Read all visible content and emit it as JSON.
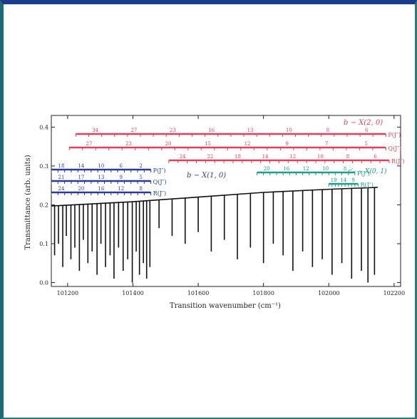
{
  "chart_data": {
    "type": "line",
    "xlabel": "Transition wavenumber (cm⁻¹)",
    "ylabel": "Transmittance (arb. units)",
    "xlim": [
      101150,
      102220
    ],
    "ylim": [
      -0.01,
      0.43
    ],
    "xticks": [
      "101200",
      "101400",
      "101600",
      "101800",
      "102000",
      "102200"
    ],
    "yticks": [
      "0.0",
      "0.1",
      "0.2",
      "0.3",
      "0.4"
    ],
    "grid": false,
    "legend_position": "none",
    "band_labels": {
      "red_band": "b − X(2, 0)",
      "blue_band": "b − X(1, 0)",
      "green_band": "c′₀ − X(0, 1)"
    },
    "branches": [
      {
        "band": "red_band",
        "name": "P(J″)",
        "color": "#e0405a",
        "x_start": 101225,
        "x_end": 102175,
        "numbers": [
          "34",
          "27",
          "23",
          "16",
          "13",
          "10",
          "8",
          "6"
        ]
      },
      {
        "band": "red_band",
        "name": "Q(J″)",
        "color": "#e0405a",
        "x_start": 101205,
        "x_end": 102175,
        "numbers": [
          "27",
          "23",
          "20",
          "15",
          "12",
          "9",
          "7",
          "5"
        ]
      },
      {
        "band": "red_band",
        "name": "R(J″)",
        "color": "#e0405a",
        "x_start": 101510,
        "x_end": 102185,
        "numbers": [
          "24",
          "22",
          "18",
          "14",
          "12",
          "10",
          "8",
          "6"
        ]
      },
      {
        "band": "blue_band",
        "name": "P(J″)",
        "color": "#2a3aa0",
        "x_start": 101150,
        "x_end": 101455,
        "numbers": [
          "18",
          "14",
          "10",
          "6",
          "2"
        ]
      },
      {
        "band": "blue_band",
        "name": "Q(J″)",
        "color": "#2a3aa0",
        "x_start": 101150,
        "x_end": 101455,
        "numbers": [
          "21",
          "17",
          "13",
          "9",
          "5"
        ]
      },
      {
        "band": "blue_band",
        "name": "R(J″)",
        "color": "#2a3aa0",
        "x_start": 101150,
        "x_end": 101455,
        "numbers": [
          "24",
          "20",
          "16",
          "12",
          "8"
        ]
      },
      {
        "band": "green_band",
        "name": "P(J″)",
        "color": "#1aa08a",
        "x_start": 101780,
        "x_end": 102080,
        "numbers": [
          "20",
          "16",
          "12",
          "10",
          "8"
        ]
      },
      {
        "band": "green_band",
        "name": "R(J″)",
        "color": "#1aa08a",
        "x_start": 102000,
        "x_end": 102090,
        "numbers": [
          "19",
          "14",
          "9"
        ]
      }
    ],
    "series": [
      {
        "color": "#111111",
        "continuum": [
          [
            101150,
            0.197
          ],
          [
            101400,
            0.208
          ],
          [
            101600,
            0.22
          ],
          [
            101800,
            0.232
          ],
          [
            102000,
            0.24
          ],
          [
            102150,
            0.245
          ]
        ],
        "absorption_lines": [
          [
            101160,
            0.07
          ],
          [
            101172,
            0.1
          ],
          [
            101185,
            0.04
          ],
          [
            101196,
            0.12
          ],
          [
            101210,
            0.06
          ],
          [
            101222,
            0.09
          ],
          [
            101236,
            0.03
          ],
          [
            101248,
            0.11
          ],
          [
            101262,
            0.05
          ],
          [
            101275,
            0.08
          ],
          [
            101290,
            0.02
          ],
          [
            101302,
            0.1
          ],
          [
            101316,
            0.04
          ],
          [
            101330,
            0.07
          ],
          [
            101342,
            0.01
          ],
          [
            101356,
            0.09
          ],
          [
            101370,
            0.03
          ],
          [
            101384,
            0.06
          ],
          [
            101398,
            0.0
          ],
          [
            101410,
            0.08
          ],
          [
            101420,
            0.02
          ],
          [
            101432,
            0.05
          ],
          [
            101442,
            0.01
          ],
          [
            101452,
            0.04
          ],
          [
            101480,
            0.14
          ],
          [
            101520,
            0.12
          ],
          [
            101560,
            0.1
          ],
          [
            101600,
            0.13
          ],
          [
            101640,
            0.08
          ],
          [
            101680,
            0.11
          ],
          [
            101720,
            0.06
          ],
          [
            101760,
            0.09
          ],
          [
            101800,
            0.05
          ],
          [
            101830,
            0.1
          ],
          [
            101860,
            0.07
          ],
          [
            101890,
            0.03
          ],
          [
            101920,
            0.08
          ],
          [
            101950,
            0.04
          ],
          [
            101980,
            0.06
          ],
          [
            102010,
            0.02
          ],
          [
            102040,
            0.05
          ],
          [
            102070,
            0.01
          ],
          [
            102100,
            0.03
          ],
          [
            102120,
            0.0
          ],
          [
            102140,
            0.02
          ]
        ]
      }
    ]
  }
}
